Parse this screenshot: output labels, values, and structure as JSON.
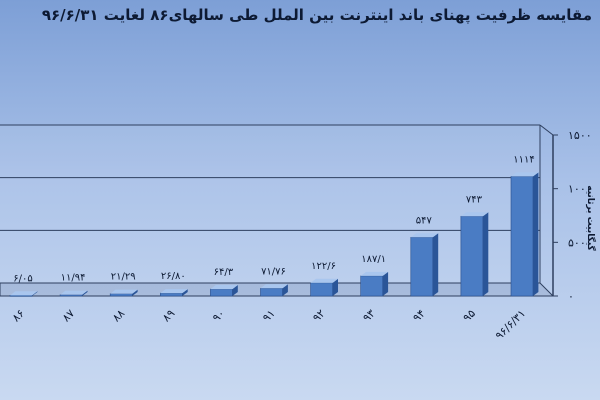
{
  "chart_data": {
    "type": "bar",
    "title": "مقایسه ظرفیت پهنای باند اینترنت بین الملل طی سالهای۸۶ لغایت ۹۶/۶/۳۱",
    "ylabel": "گیگابیت برثانیه",
    "xlabel": "",
    "categories": [
      "۸۶",
      "۸۷",
      "۸۸",
      "۸۹",
      "۹۰",
      "۹۱",
      "۹۲",
      "۹۳",
      "۹۴",
      "۹۵",
      "۹۶/۶/۳۱"
    ],
    "values": [
      6.05,
      11.94,
      21.29,
      26.8,
      64.3,
      71.76,
      122.6,
      187.1,
      547,
      743,
      1114
    ],
    "value_labels": [
      "۶/۰۵",
      "۱۱/۹۴",
      "۲۱/۲۹",
      "۲۶/۸۰",
      "۶۴/۳",
      "۷۱/۷۶",
      "۱۲۲/۶",
      "۱۸۷/۱",
      "۵۴۷",
      "۷۴۳",
      "۱۱۱۴"
    ],
    "ylim": [
      0,
      1500
    ],
    "yticks": [
      0,
      500,
      1000,
      1500
    ],
    "ytick_labels": [
      "۰",
      "۵۰۰",
      "۱۰۰۰",
      "۱۵۰۰"
    ],
    "grid": true,
    "colors": {
      "bar_front": "#4a7cc4",
      "bar_side": "#2a5598",
      "bar_top": "#a9c6ee",
      "axis_box": "#2e3f5f",
      "text": "#0d1a33"
    }
  }
}
